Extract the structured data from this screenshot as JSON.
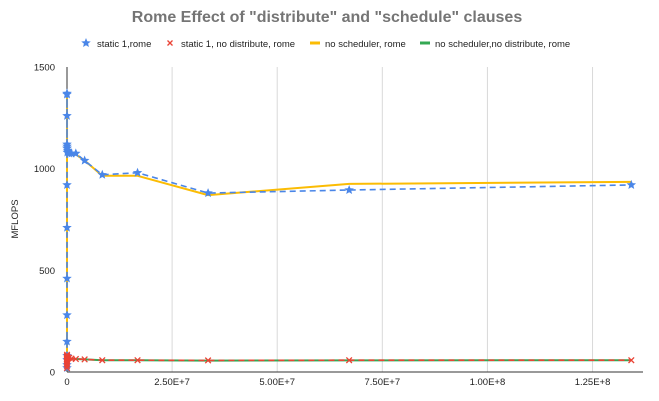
{
  "chart_data": {
    "type": "scatter",
    "title": "Rome Effect of \"distribute\" and \"schedule\" clauses",
    "xlabel": "",
    "ylabel": "MFLOPS",
    "xlim": [
      0,
      137000000
    ],
    "ylim": [
      0,
      1500
    ],
    "x_ticks": [
      0,
      25000000,
      50000000,
      75000000,
      100000000,
      125000000
    ],
    "x_tick_labels": [
      "0",
      "2.50E+7",
      "5.00E+7",
      "7.50E+7",
      "1.00E+8",
      "1.25E+8"
    ],
    "y_ticks": [
      0,
      500,
      1000,
      1500
    ],
    "y_tick_labels": [
      "0",
      "500",
      "1000",
      "1500"
    ],
    "grid": "vertical",
    "legend_position": "top",
    "series": [
      {
        "name": "static 1,rome",
        "color": "#4a86e8",
        "line": "dashed",
        "marker": "star",
        "x": [
          1,
          2,
          4,
          8,
          16,
          32,
          64,
          128,
          256,
          512,
          1024,
          2048,
          4096,
          8192,
          16384,
          32768,
          65536,
          131072,
          262144,
          524288,
          1048576,
          2097152,
          4194304,
          8388608,
          16777216,
          33554432,
          67108864,
          134217728
        ],
        "y": [
          20,
          35,
          60,
          80,
          150,
          280,
          460,
          710,
          920,
          1100,
          1260,
          1370,
          1365,
          1120,
          1110,
          1100,
          1080,
          1090,
          1085,
          1075,
          1075,
          1075,
          1040,
          970,
          980,
          880,
          895,
          920
        ]
      },
      {
        "name": "static 1, no distribute, rome",
        "color": "#ea4335",
        "line": "dashed",
        "marker": "x",
        "x": [
          1,
          2,
          4,
          8,
          16,
          32,
          64,
          128,
          256,
          512,
          1024,
          2048,
          4096,
          8192,
          16384,
          32768,
          65536,
          131072,
          262144,
          524288,
          1048576,
          2097152,
          4194304,
          8388608,
          16777216,
          33554432,
          67108864,
          134217728
        ],
        "y": [
          20,
          30,
          40,
          50,
          55,
          60,
          62,
          64,
          65,
          70,
          72,
          75,
          80,
          85,
          72,
          75,
          68,
          65,
          68,
          70,
          66,
          64,
          62,
          58,
          58,
          57,
          58,
          58
        ]
      },
      {
        "name": "no scheduler, rome",
        "color": "#fbbc04",
        "line": "solid",
        "marker": "none",
        "x": [
          1,
          2,
          4,
          8,
          16,
          32,
          64,
          128,
          256,
          512,
          1024,
          2048,
          4096,
          8192,
          16384,
          32768,
          65536,
          131072,
          262144,
          524288,
          1048576,
          2097152,
          4194304,
          8388608,
          16777216,
          33554432,
          67108864,
          134217728
        ],
        "y": [
          20,
          35,
          60,
          80,
          150,
          280,
          460,
          710,
          920,
          1100,
          1260,
          1370,
          1365,
          1120,
          1110,
          1100,
          1080,
          1090,
          1085,
          1075,
          1075,
          1070,
          1040,
          965,
          965,
          870,
          925,
          935
        ]
      },
      {
        "name": "no scheduler,no distribute, rome",
        "color": "#34a853",
        "line": "solid",
        "marker": "none",
        "x": [
          1,
          2,
          4,
          8,
          16,
          32,
          64,
          128,
          256,
          512,
          1024,
          2048,
          4096,
          8192,
          16384,
          32768,
          65536,
          131072,
          262144,
          524288,
          1048576,
          2097152,
          4194304,
          8388608,
          16777216,
          33554432,
          67108864,
          134217728
        ],
        "y": [
          20,
          30,
          40,
          50,
          55,
          60,
          62,
          64,
          65,
          70,
          72,
          75,
          80,
          85,
          72,
          75,
          68,
          65,
          68,
          70,
          66,
          64,
          62,
          58,
          58,
          56,
          57,
          58
        ]
      }
    ]
  }
}
